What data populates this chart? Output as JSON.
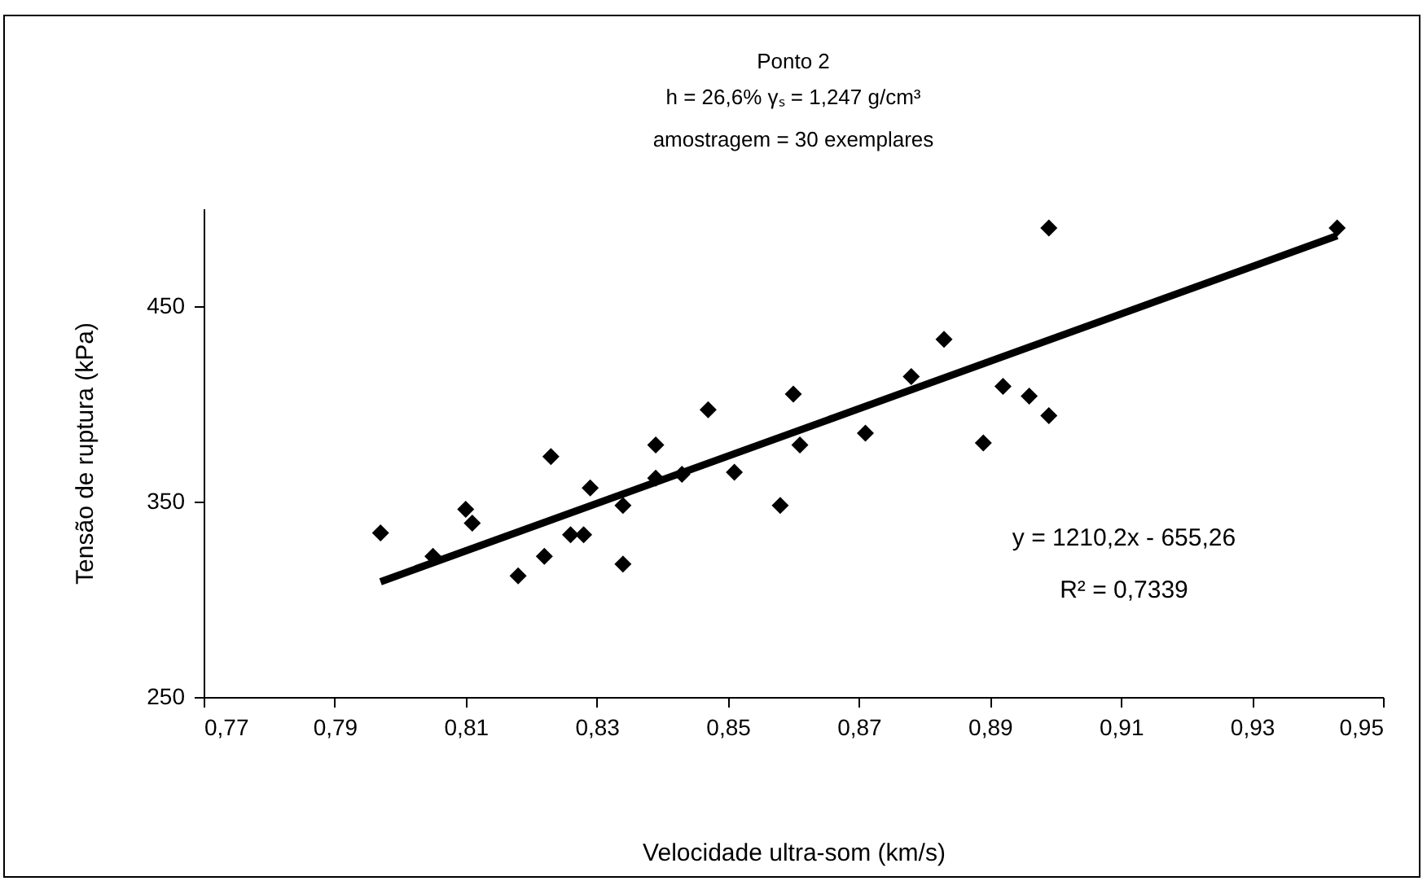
{
  "chart_data": {
    "type": "scatter",
    "title": "Ponto 2",
    "subtitle": "h = 26,6%      γₛ = 1,247 g/cm³\namostragem = 30 exemplares",
    "xlabel": "Velocidade ultra-som (km/s)",
    "ylabel": "Tensão de ruptura (kPa)",
    "annotations": [
      "y = 1210,2x - 655,26",
      "R² = 0,7339"
    ],
    "xlim": [
      0.77,
      0.95
    ],
    "xticks": [
      {
        "value": 0.77,
        "label": "0,77"
      },
      {
        "value": 0.79,
        "label": "0,79"
      },
      {
        "value": 0.81,
        "label": "0,81"
      },
      {
        "value": 0.83,
        "label": "0,83"
      },
      {
        "value": 0.85,
        "label": "0,85"
      },
      {
        "value": 0.87,
        "label": "0,87"
      },
      {
        "value": 0.89,
        "label": "0,89"
      },
      {
        "value": 0.91,
        "label": "0,91"
      },
      {
        "value": 0.93,
        "label": "0,93"
      },
      {
        "value": 0.95,
        "label": "0,95"
      }
    ],
    "ylim": [
      250,
      500
    ],
    "yticks": [
      250,
      350,
      450
    ],
    "grid": false,
    "marker": "diamond",
    "series": [
      {
        "color": "#000000",
        "x": [
          0.797,
          0.805,
          0.81,
          0.811,
          0.818,
          0.822,
          0.823,
          0.826,
          0.828,
          0.829,
          0.834,
          0.834,
          0.839,
          0.839,
          0.843,
          0.847,
          0.851,
          0.858,
          0.86,
          0.861,
          0.871,
          0.878,
          0.883,
          0.889,
          0.892,
          0.896,
          0.899,
          0.899,
          0.943
        ],
        "values": [
          334,
          322,
          346,
          339,
          312,
          322,
          373,
          333,
          333,
          357,
          348,
          318,
          379,
          362,
          364,
          397,
          365,
          348,
          405,
          379,
          385,
          414,
          433,
          380,
          409,
          404,
          394,
          490,
          490
        ]
      },
      {
        "type": "line",
        "color": "#000000",
        "marker": "none",
        "line_style": "solid",
        "x": [
          0.797,
          0.943
        ],
        "values": [
          309,
          486
        ]
      }
    ]
  }
}
